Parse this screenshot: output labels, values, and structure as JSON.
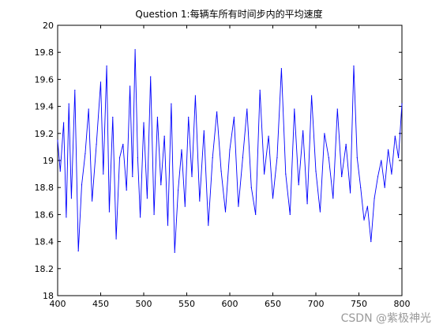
{
  "chart_data": {
    "type": "line",
    "title": "Question 1:每辆车所有时间步内的平均速度",
    "xlabel": "",
    "ylabel": "",
    "xlim": [
      400,
      800
    ],
    "ylim": [
      18,
      20
    ],
    "xticks": [
      400,
      450,
      500,
      550,
      600,
      650,
      700,
      750,
      800
    ],
    "yticks": [
      18,
      18.2,
      18.4,
      18.6,
      18.8,
      19,
      19.2,
      19.4,
      19.6,
      19.8,
      20
    ],
    "grid": false,
    "series": [
      {
        "color": "#0000ff",
        "x": [
          400,
          403,
          407,
          410,
          413,
          416,
          420,
          424,
          428,
          432,
          436,
          440,
          445,
          450,
          453,
          457,
          460,
          464,
          468,
          472,
          476,
          480,
          484,
          487,
          490,
          493,
          496,
          500,
          504,
          508,
          512,
          516,
          520,
          524,
          528,
          532,
          536,
          540,
          544,
          548,
          552,
          556,
          560,
          565,
          570,
          575,
          580,
          585,
          590,
          595,
          600,
          605,
          610,
          615,
          620,
          625,
          630,
          635,
          640,
          645,
          650,
          655,
          660,
          665,
          670,
          675,
          680,
          685,
          690,
          695,
          700,
          705,
          710,
          715,
          720,
          725,
          730,
          735,
          740,
          744,
          748,
          752,
          756,
          760,
          764,
          768,
          772,
          776,
          780,
          784,
          788,
          792,
          796,
          800
        ],
        "values": [
          19.15,
          18.92,
          19.28,
          18.58,
          19.42,
          18.72,
          19.52,
          18.33,
          18.82,
          19.05,
          19.38,
          18.7,
          19.12,
          19.58,
          18.9,
          19.7,
          18.62,
          19.32,
          18.42,
          19.02,
          19.12,
          18.78,
          19.55,
          18.88,
          19.82,
          19.02,
          18.58,
          19.28,
          18.72,
          19.62,
          18.6,
          19.32,
          18.82,
          19.18,
          18.52,
          19.42,
          18.32,
          18.78,
          19.08,
          18.66,
          19.32,
          18.88,
          19.48,
          18.7,
          19.22,
          18.52,
          19.02,
          19.36,
          18.92,
          18.62,
          19.08,
          19.32,
          18.66,
          19.02,
          19.38,
          18.8,
          18.6,
          19.52,
          18.9,
          19.18,
          18.72,
          19.02,
          19.68,
          18.9,
          18.6,
          19.38,
          18.82,
          19.22,
          18.68,
          19.48,
          18.92,
          18.62,
          19.2,
          19.02,
          18.72,
          19.38,
          18.88,
          19.12,
          18.76,
          19.7,
          19.02,
          18.8,
          18.56,
          18.66,
          18.4,
          18.72,
          18.88,
          19.0,
          18.8,
          19.08,
          18.9,
          19.18,
          19.02,
          19.42
        ]
      }
    ]
  },
  "watermark": "CSDN @紫极神光"
}
